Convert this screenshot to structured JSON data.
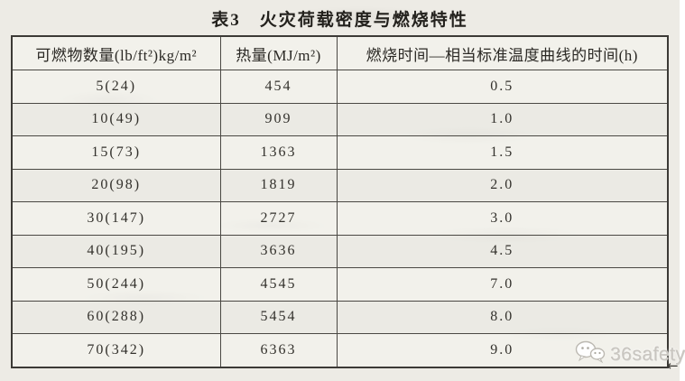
{
  "title": "表3　火灾荷载密度与燃烧特性",
  "table": {
    "headers": [
      "可燃物数量(lb/ft²)kg/m²",
      "热量(MJ/m²)",
      "燃烧时间—相当标准温度曲线的时间(h)"
    ],
    "rows": [
      [
        "5(24)",
        "454",
        "0.5"
      ],
      [
        "10(49)",
        "909",
        "1.0"
      ],
      [
        "15(73)",
        "1363",
        "1.5"
      ],
      [
        "20(98)",
        "1819",
        "2.0"
      ],
      [
        "30(147)",
        "2727",
        "3.0"
      ],
      [
        "40(195)",
        "3636",
        "4.5"
      ],
      [
        "50(244)",
        "4545",
        "7.0"
      ],
      [
        "60(288)",
        "5454",
        "8.0"
      ],
      [
        "70(342)",
        "6363",
        "9.0"
      ]
    ]
  },
  "watermark": {
    "label": "36safety",
    "icon": "wechat-bubbles-icon"
  },
  "cursor": {
    "glyph": "←"
  },
  "colors": {
    "paper": "#edebe5",
    "table_line": "#3c3a36",
    "text": "#2f2d29",
    "watermark": "#c8c5bf"
  }
}
